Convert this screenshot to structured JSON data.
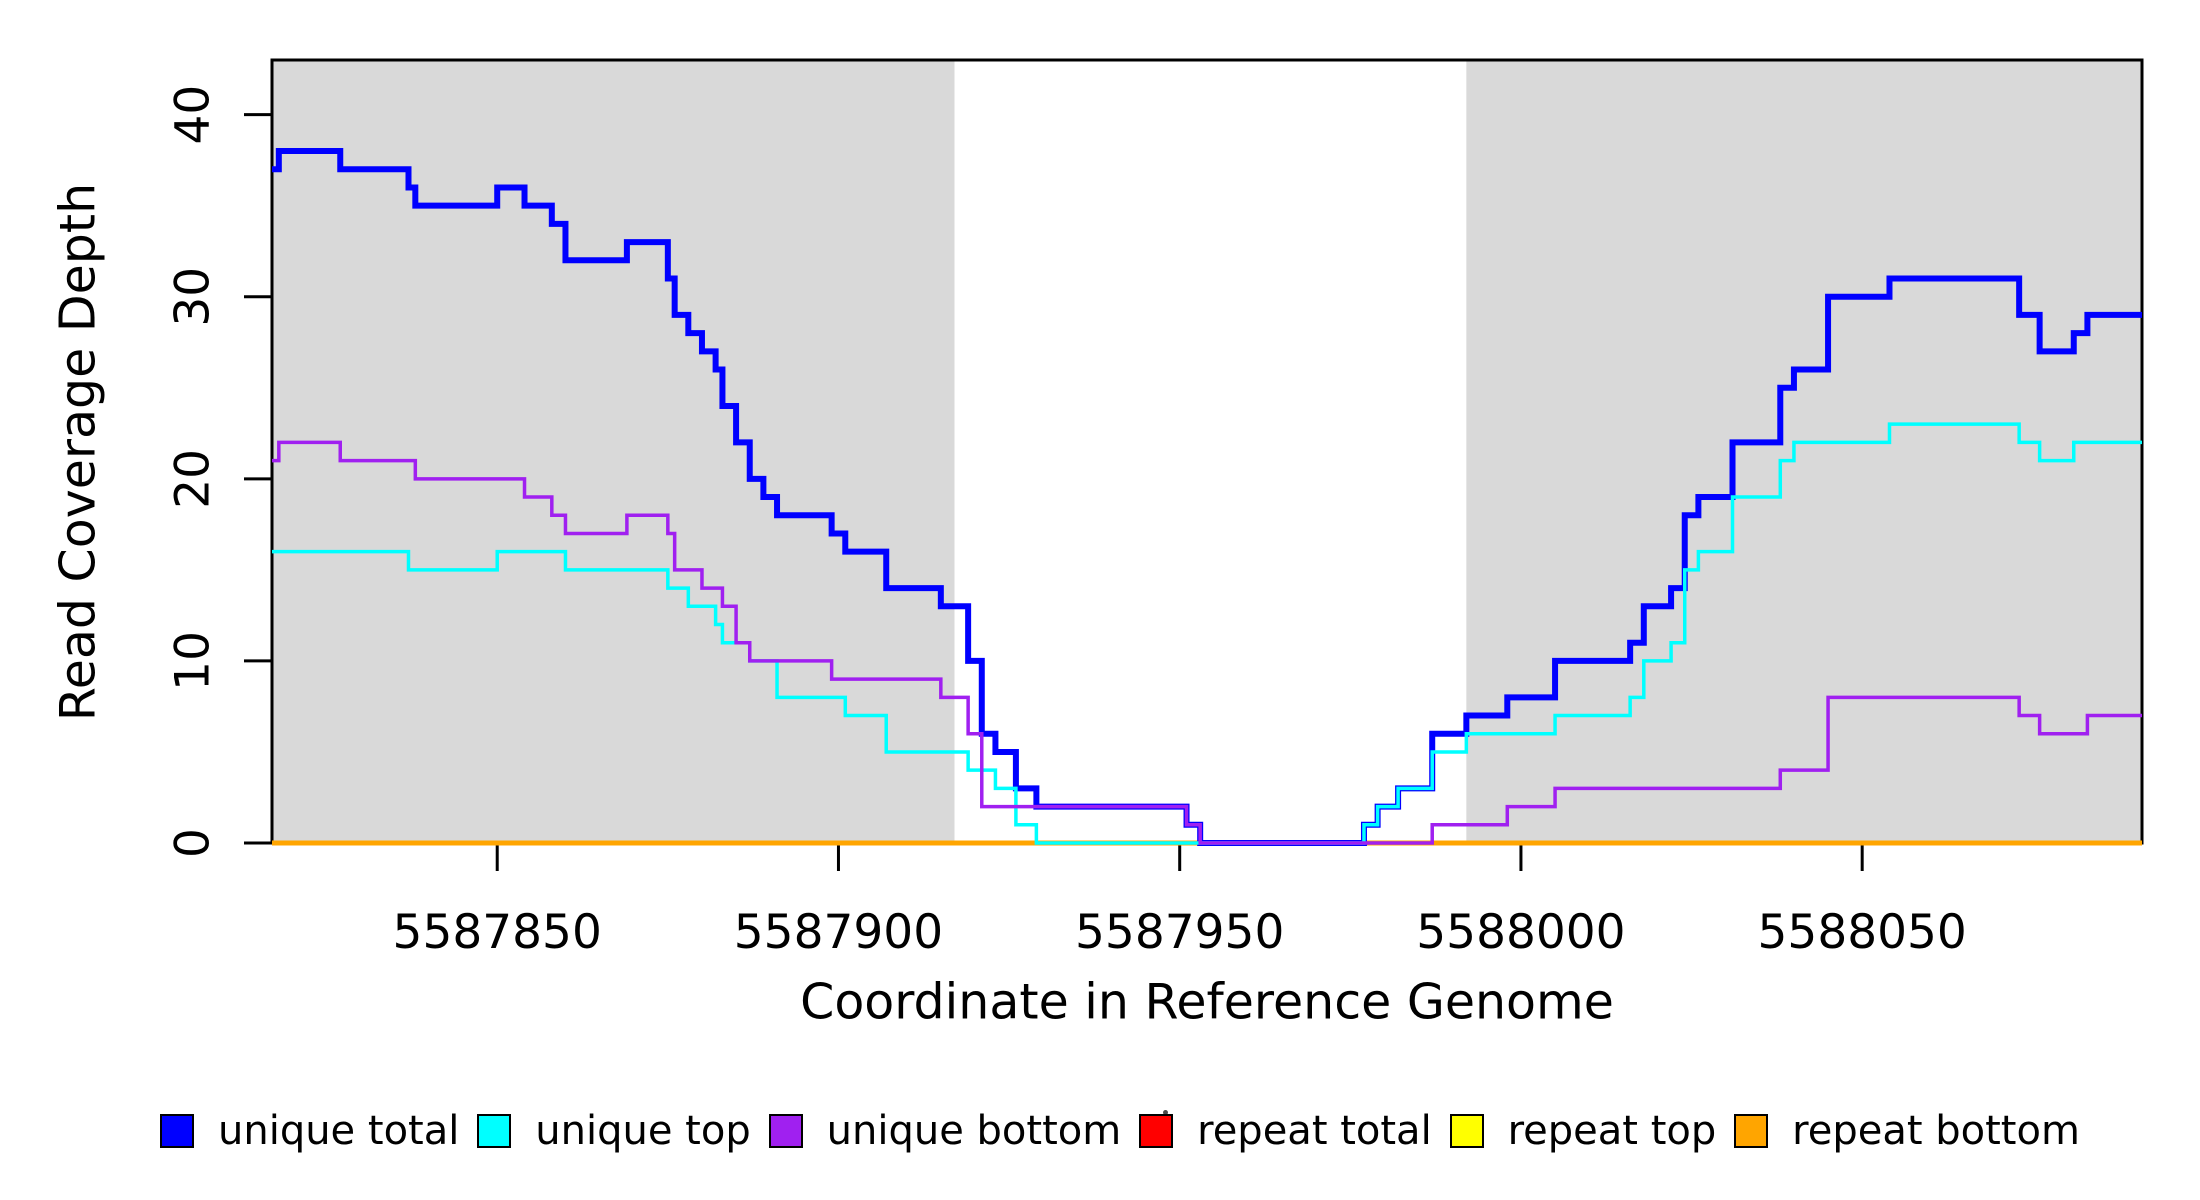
{
  "chart_data": {
    "type": "line",
    "subtype": "step",
    "title": "",
    "xlabel": "Coordinate in Reference Genome",
    "ylabel": "Read Coverage Depth",
    "xlim": [
      5587817,
      5588091
    ],
    "ylim": [
      0,
      43
    ],
    "xticks": [
      5587850,
      5587900,
      5587950,
      5588000,
      5588050
    ],
    "yticks": [
      0,
      10,
      20,
      30,
      40
    ],
    "grid": false,
    "background": "#ffffff",
    "shade_color": "#d9d9d9",
    "shaded_regions": [
      [
        5587817,
        5587917
      ],
      [
        5587992,
        5588091
      ]
    ],
    "legend_position": "bottom",
    "series": [
      {
        "name": "repeat total",
        "color": "#ff0000",
        "width": 5,
        "points": [
          [
            5587817,
            0
          ]
        ]
      },
      {
        "name": "repeat top",
        "color": "#ffff00",
        "width": 5,
        "points": [
          [
            5587817,
            0
          ]
        ]
      },
      {
        "name": "repeat bottom",
        "color": "#ffa500",
        "width": 5,
        "points": [
          [
            5587817,
            0
          ]
        ]
      },
      {
        "name": "unique total",
        "color": "#0000ff",
        "width": 6,
        "points": [
          [
            5587817,
            37
          ],
          [
            5587818,
            38
          ],
          [
            5587827,
            37
          ],
          [
            5587837,
            36
          ],
          [
            5587838,
            35
          ],
          [
            5587850,
            36
          ],
          [
            5587854,
            35
          ],
          [
            5587858,
            34
          ],
          [
            5587860,
            32
          ],
          [
            5587869,
            33
          ],
          [
            5587875,
            31
          ],
          [
            5587876,
            29
          ],
          [
            5587878,
            28
          ],
          [
            5587880,
            27
          ],
          [
            5587882,
            26
          ],
          [
            5587883,
            24
          ],
          [
            5587885,
            22
          ],
          [
            5587887,
            20
          ],
          [
            5587889,
            19
          ],
          [
            5587891,
            18
          ],
          [
            5587899,
            17
          ],
          [
            5587901,
            16
          ],
          [
            5587907,
            14
          ],
          [
            5587915,
            13
          ],
          [
            5587919,
            10
          ],
          [
            5587921,
            6
          ],
          [
            5587923,
            5
          ],
          [
            5587926,
            3
          ],
          [
            5587929,
            2
          ],
          [
            5587951,
            1
          ],
          [
            5587953,
            0
          ],
          [
            5587977,
            1
          ],
          [
            5587979,
            2
          ],
          [
            5587982,
            3
          ],
          [
            5587987,
            6
          ],
          [
            5587992,
            7
          ],
          [
            5587998,
            8
          ],
          [
            5588005,
            10
          ],
          [
            5588016,
            11
          ],
          [
            5588018,
            13
          ],
          [
            5588022,
            14
          ],
          [
            5588024,
            18
          ],
          [
            5588026,
            19
          ],
          [
            5588031,
            22
          ],
          [
            5588038,
            25
          ],
          [
            5588040,
            26
          ],
          [
            5588045,
            30
          ],
          [
            5588054,
            31
          ],
          [
            5588073,
            29
          ],
          [
            5588076,
            27
          ],
          [
            5588081,
            28
          ],
          [
            5588083,
            29
          ]
        ]
      },
      {
        "name": "unique top",
        "color": "#00ffff",
        "width": 3.5,
        "points": [
          [
            5587817,
            16
          ],
          [
            5587837,
            15
          ],
          [
            5587850,
            16
          ],
          [
            5587860,
            15
          ],
          [
            5587875,
            14
          ],
          [
            5587878,
            13
          ],
          [
            5587882,
            12
          ],
          [
            5587883,
            11
          ],
          [
            5587887,
            10
          ],
          [
            5587891,
            8
          ],
          [
            5587901,
            7
          ],
          [
            5587907,
            5
          ],
          [
            5587919,
            4
          ],
          [
            5587923,
            3
          ],
          [
            5587926,
            1
          ],
          [
            5587929,
            0
          ],
          [
            5587977,
            1
          ],
          [
            5587979,
            2
          ],
          [
            5587982,
            3
          ],
          [
            5587987,
            5
          ],
          [
            5587992,
            6
          ],
          [
            5588005,
            7
          ],
          [
            5588016,
            8
          ],
          [
            5588018,
            10
          ],
          [
            5588022,
            11
          ],
          [
            5588024,
            15
          ],
          [
            5588026,
            16
          ],
          [
            5588031,
            19
          ],
          [
            5588038,
            21
          ],
          [
            5588040,
            22
          ],
          [
            5588054,
            23
          ],
          [
            5588073,
            22
          ],
          [
            5588076,
            21
          ],
          [
            5588081,
            22
          ]
        ]
      },
      {
        "name": "unique bottom",
        "color": "#a020f0",
        "width": 3.5,
        "points": [
          [
            5587817,
            21
          ],
          [
            5587818,
            22
          ],
          [
            5587827,
            21
          ],
          [
            5587838,
            20
          ],
          [
            5587854,
            19
          ],
          [
            5587858,
            18
          ],
          [
            5587860,
            17
          ],
          [
            5587869,
            18
          ],
          [
            5587875,
            17
          ],
          [
            5587876,
            15
          ],
          [
            5587880,
            14
          ],
          [
            5587883,
            13
          ],
          [
            5587885,
            11
          ],
          [
            5587887,
            10
          ],
          [
            5587899,
            9
          ],
          [
            5587915,
            8
          ],
          [
            5587919,
            6
          ],
          [
            5587921,
            2
          ],
          [
            5587951,
            1
          ],
          [
            5587953,
            0
          ],
          [
            5587987,
            1
          ],
          [
            5587998,
            2
          ],
          [
            5588005,
            3
          ],
          [
            5588038,
            4
          ],
          [
            5588045,
            8
          ],
          [
            5588073,
            7
          ],
          [
            5588076,
            6
          ],
          [
            5588083,
            7
          ]
        ]
      }
    ],
    "legend": [
      {
        "label": "unique total",
        "color": "#0000ff"
      },
      {
        "label": "unique top",
        "color": "#00ffff"
      },
      {
        "label": "unique bottom",
        "color": "#a020f0"
      },
      {
        "label": "repeat total",
        "color": "#ff0000"
      },
      {
        "label": "repeat top",
        "color": "#ffff00"
      },
      {
        "label": "repeat bottom",
        "color": "#ffa500"
      }
    ]
  }
}
